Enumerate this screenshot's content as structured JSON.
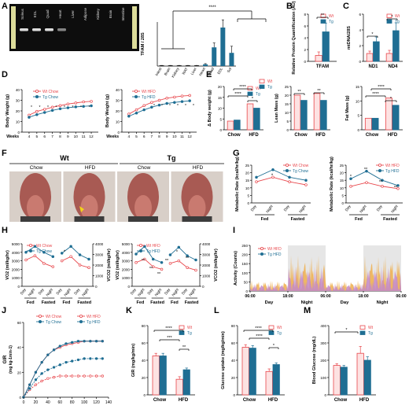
{
  "colors": {
    "wt": "#e8474c",
    "tg": "#1f6e93",
    "gel": "#0d0d0d",
    "band": "#e8e8e8",
    "mouse": "#a85a53",
    "mouse_bg": "#d8cfc8",
    "activity_wt": "#c389c9",
    "activity_tg": "#efae4b"
  },
  "panels": {
    "A": "A",
    "B": "B",
    "C": "C",
    "D": "D",
    "E": "E",
    "F": "F",
    "G": "G",
    "H": "H",
    "I": "I",
    "J": "J",
    "K": "K",
    "L": "L",
    "M": "M"
  },
  "chart_data": [
    {
      "id": "A-gel",
      "type": "other",
      "lanes": [
        "Soleus",
        "EDL",
        "Quad",
        "Heart",
        "Liver",
        "Adipose",
        "Kidney",
        "Brain",
        "Intestine"
      ],
      "bands_visible_in": [
        "Soleus",
        "EDL",
        "Quad",
        "Heart"
      ]
    },
    {
      "id": "A",
      "type": "bar",
      "ylabel": "TFAM / 28S",
      "categories": [
        "Intest",
        "Brain",
        "Kidney",
        "WAT",
        "Liver",
        "Heart",
        "Quad",
        "EDL",
        "Sol"
      ],
      "values": [
        0.02,
        0.02,
        0.02,
        0.02,
        0.02,
        0.08,
        0.85,
        1.75,
        0.6
      ],
      "errors": [
        0.01,
        0.01,
        0.01,
        0.01,
        0.01,
        0.03,
        0.2,
        0.35,
        0.3
      ],
      "sig": "****"
    },
    {
      "id": "B",
      "type": "bar",
      "ylabel": "Relative Protein Quantification (AU)",
      "categories": [
        "TFAM"
      ],
      "series": [
        {
          "name": "Wt",
          "values": [
            1.0
          ],
          "errors": [
            0.6
          ]
        },
        {
          "name": "Tg",
          "values": [
            5.0
          ],
          "errors": [
            1.5
          ]
        }
      ],
      "ylim": [
        0,
        8
      ],
      "yticks": [
        0,
        2,
        4,
        6,
        8
      ],
      "sig": "**",
      "legend": "top-right"
    },
    {
      "id": "C",
      "type": "bar",
      "ylabel": "mtDNA/28S",
      "categories": [
        "ND1",
        "ND4"
      ],
      "series": [
        {
          "name": "Wt",
          "values": [
            1.0,
            1.0
          ],
          "errors": [
            0.3,
            0.4
          ]
        },
        {
          "name": "Tg",
          "values": [
            2.5,
            3.9
          ],
          "errors": [
            0.6,
            1.0
          ]
        }
      ],
      "ylim": [
        0,
        6
      ],
      "yticks": [
        0,
        2,
        4,
        6
      ],
      "sig": [
        "*",
        "*"
      ],
      "legend": "top-right"
    },
    {
      "id": "D1",
      "type": "line",
      "ylabel": "Body Weight (g)",
      "xlabel": "Weeks",
      "x": [
        4,
        5,
        6,
        7,
        8,
        9,
        10,
        11,
        12
      ],
      "series": [
        {
          "name": "Wt Chow",
          "values": [
            16,
            19.5,
            21.5,
            23.5,
            25,
            26.5,
            27.5,
            28.5,
            29
          ]
        },
        {
          "name": "Tg Chow",
          "values": [
            14,
            16.5,
            18.5,
            20.5,
            22,
            23,
            23.8,
            24.3,
            24.8
          ]
        }
      ],
      "ylim": [
        0,
        40
      ],
      "yticks": [
        0,
        10,
        20,
        30,
        40
      ],
      "sig": "*",
      "legend": "top-left"
    },
    {
      "id": "D2",
      "type": "line",
      "ylabel": "Body Weight (g)",
      "xlabel": "Weeks",
      "x": [
        4,
        5,
        6,
        7,
        8,
        9,
        10,
        11,
        12
      ],
      "series": [
        {
          "name": "Wt HFD",
          "values": [
            17,
            21,
            25,
            28,
            30,
            32,
            33,
            34,
            34.5
          ]
        },
        {
          "name": "Tg HFD",
          "values": [
            15,
            18,
            21,
            23.5,
            25.5,
            27,
            28,
            28.8,
            29.5
          ]
        }
      ],
      "ylim": [
        0,
        40
      ],
      "yticks": [
        0,
        10,
        20,
        30,
        40
      ],
      "sig": "*",
      "legend": "top-left"
    },
    {
      "id": "E1",
      "type": "bar",
      "ylabel": "Δ Body weight (g)",
      "categories": [
        "Chow",
        "HFD"
      ],
      "series": [
        {
          "name": "Wt",
          "values": [
            4,
            12
          ]
        },
        {
          "name": "Tg",
          "values": [
            4.5,
            10
          ]
        }
      ],
      "ylim": [
        0,
        20
      ],
      "yticks": [
        0,
        5,
        10,
        15,
        20
      ],
      "sig": [
        "****",
        "****",
        "*"
      ],
      "legend": "top-right"
    },
    {
      "id": "E2",
      "type": "bar",
      "ylabel": "Lean Mass (g)",
      "categories": [
        "Chow",
        "HFD"
      ],
      "series": [
        {
          "name": "Wt",
          "values": [
            20,
            21
          ]
        },
        {
          "name": "Tg",
          "values": [
            17,
            17
          ]
        }
      ],
      "ylim": [
        0,
        25
      ],
      "yticks": [
        0,
        5,
        10,
        15,
        20,
        25
      ],
      "sig": [
        "**",
        "**"
      ]
    },
    {
      "id": "E3",
      "type": "bar",
      "ylabel": "Fat Mass (g)",
      "categories": [
        "Chow",
        "HFD"
      ],
      "series": [
        {
          "name": "Wt",
          "values": [
            4,
            11
          ]
        },
        {
          "name": "Tg",
          "values": [
            4,
            8.5
          ]
        }
      ],
      "ylim": [
        0,
        15
      ],
      "yticks": [
        0,
        5,
        10,
        15
      ],
      "sig": [
        "****",
        "****",
        "*"
      ]
    },
    {
      "id": "F",
      "type": "other",
      "groups": [
        "Wt",
        "Tg"
      ],
      "diets": [
        "Chow",
        "HFD",
        "Chow",
        "HFD"
      ]
    },
    {
      "id": "G1",
      "type": "line",
      "ylabel": "Metabolic Rate (kcal/hr/kg)",
      "categories": [
        "Day",
        "Night",
        "Day",
        "Night"
      ],
      "groups": [
        "Fed",
        "Fasted"
      ],
      "series": [
        {
          "name": "Wt Chow",
          "values": [
            14,
            17,
            14,
            12
          ]
        },
        {
          "name": "Tg Chow",
          "values": [
            17,
            22,
            17,
            15
          ]
        }
      ],
      "ylim": [
        0,
        25
      ],
      "yticks": [
        0,
        5,
        10,
        15,
        20,
        25
      ],
      "sig": "*",
      "legend": "top-right"
    },
    {
      "id": "G2",
      "type": "line",
      "ylabel": "Metabolic Rate (kcal/hr/kg)",
      "categories": [
        "Day",
        "Night",
        "Day",
        "Night"
      ],
      "groups": [
        "Fed",
        "Fasted"
      ],
      "series": [
        {
          "name": "Wt HFD",
          "values": [
            11,
            13.5,
            11,
            9.5
          ]
        },
        {
          "name": "Tg HFD",
          "values": [
            16,
            21,
            15,
            11.5
          ]
        }
      ],
      "ylim": [
        0,
        25
      ],
      "yticks": [
        0,
        5,
        10,
        15,
        20,
        25
      ],
      "sig": [
        "*",
        "**",
        "**",
        "**"
      ],
      "legend": "top-right"
    },
    {
      "id": "H1",
      "type": "line",
      "ylabel": "VO2 (ml/kg/hr)",
      "ylabel2": "VCO2 (ml/kg/hr)",
      "categories": [
        "Day",
        "Night",
        "Day",
        "Night",
        "Day",
        "Night",
        "Day",
        "Night"
      ],
      "groups": [
        "Fed",
        "Fasted",
        "Fed",
        "Fasted"
      ],
      "series": [
        {
          "name": "Wt Chow",
          "values": [
            3100,
            3600,
            2700,
            2300,
            3000,
            3500,
            2500,
            2200
          ]
        },
        {
          "name": "Tg Chow",
          "values": [
            4000,
            4700,
            4000,
            3500,
            3900,
            4700,
            3700,
            3200
          ]
        }
      ],
      "ylim": [
        0,
        5000
      ],
      "yticks": [
        0,
        1000,
        2000,
        3000,
        4000,
        5000
      ],
      "ylim2": [
        0,
        4000
      ],
      "yticks2": [
        0,
        1000,
        2000,
        3000,
        4000
      ],
      "sig": "*",
      "legend": "top-left"
    },
    {
      "id": "H2",
      "type": "line",
      "ylabel": "VO2 (ml/kg/hr)",
      "ylabel2": "VCO2 (ml/kg/hr)",
      "categories": [
        "Day",
        "Night",
        "Day",
        "Night",
        "Day",
        "Night",
        "Day",
        "Night"
      ],
      "groups": [
        "Fed",
        "Fasted",
        "Fed",
        "Fasted"
      ],
      "series": [
        {
          "name": "Wt HFD",
          "values": [
            2800,
            3200,
            2300,
            2000,
            2700,
            3000,
            2200,
            1900
          ]
        },
        {
          "name": "Tg HFD",
          "values": [
            3800,
            4700,
            3200,
            2800,
            3700,
            4600,
            3600,
            3100
          ]
        }
      ],
      "ylim": [
        0,
        5000
      ],
      "yticks": [
        0,
        1000,
        2000,
        3000,
        4000,
        5000
      ],
      "ylim2": [
        0,
        4000
      ],
      "yticks2": [
        0,
        1000,
        2000,
        3000,
        4000
      ],
      "sig": [
        "**",
        "**",
        "**",
        "**",
        "*",
        "**"
      ],
      "legend": "top-left"
    },
    {
      "id": "I",
      "type": "area",
      "ylabel": "Activity (Counts)",
      "xticks": [
        "06:00",
        "18:00",
        "06:00",
        "18:00",
        "06:00"
      ],
      "periods": [
        "Day",
        "Night",
        "Day",
        "Night"
      ],
      "series": [
        {
          "name": "Wt HFD"
        },
        {
          "name": "Tg HFD"
        }
      ],
      "ylim": [
        0,
        250
      ],
      "yticks": [
        0,
        50,
        100,
        150,
        200,
        250
      ],
      "legend": "top-left"
    },
    {
      "id": "J",
      "type": "line",
      "ylabel": "GIR",
      "ylabel2": "(mg kg-1min-1)",
      "x": [
        0,
        10,
        20,
        30,
        40,
        50,
        60,
        70,
        80,
        90,
        100,
        110,
        120,
        130
      ],
      "series": [
        {
          "name": "Wt Chow",
          "values": [
            0,
            10,
            20,
            28,
            34,
            38,
            40,
            42,
            43,
            44,
            45,
            45,
            45,
            45
          ]
        },
        {
          "name": "Tg Chow",
          "values": [
            0,
            10,
            20,
            28,
            34,
            38,
            41,
            43,
            44,
            45,
            45,
            45,
            45,
            45
          ]
        },
        {
          "name": "Wt HFD",
          "values": [
            0,
            6,
            10,
            13,
            15,
            16,
            17,
            17,
            17,
            17,
            17,
            17,
            17,
            17
          ]
        },
        {
          "name": "Tg HFD",
          "values": [
            0,
            7,
            14,
            19,
            22,
            24,
            26,
            28,
            29,
            30,
            31,
            31,
            31,
            31
          ]
        }
      ],
      "xlim": [
        0,
        140
      ],
      "xticks": [
        0,
        20,
        40,
        60,
        80,
        100,
        120,
        140
      ],
      "ylim": [
        0,
        60
      ],
      "yticks": [
        0,
        20,
        40,
        60
      ],
      "legend": "top-left"
    },
    {
      "id": "K",
      "type": "bar",
      "ylabel": "GIR (mg/kg/min)",
      "categories": [
        "Chow",
        "HFD"
      ],
      "series": [
        {
          "name": "Wt",
          "values": [
            45,
            18
          ],
          "errors": [
            3,
            3
          ]
        },
        {
          "name": "Tg",
          "values": [
            45,
            29
          ],
          "errors": [
            3,
            2
          ]
        }
      ],
      "ylim": [
        0,
        80
      ],
      "yticks": [
        0,
        20,
        40,
        60,
        80
      ],
      "sig": [
        "****",
        "***",
        "**"
      ],
      "legend": "top-right"
    },
    {
      "id": "L",
      "type": "bar",
      "ylabel": "Glucose uptake (mg/kg/min)",
      "categories": [
        "Chow",
        "HFD"
      ],
      "series": [
        {
          "name": "Wt",
          "values": [
            55,
            27
          ],
          "errors": [
            3,
            3
          ]
        },
        {
          "name": "Tg",
          "values": [
            54,
            35
          ],
          "errors": [
            3,
            2
          ]
        }
      ],
      "ylim": [
        0,
        80
      ],
      "yticks": [
        0,
        20,
        40,
        60,
        80
      ],
      "sig": [
        "****",
        "****",
        "*"
      ],
      "legend": "top-right"
    },
    {
      "id": "M",
      "type": "bar",
      "ylabel": "Blood Glucose (mg/dL)",
      "categories": [
        "Chow",
        "HFD"
      ],
      "series": [
        {
          "name": "Wt",
          "values": [
            170,
            240
          ],
          "errors": [
            10,
            40
          ]
        },
        {
          "name": "Tg",
          "values": [
            160,
            200
          ],
          "errors": [
            10,
            20
          ]
        }
      ],
      "ylim": [
        0,
        400
      ],
      "yticks": [
        0,
        100,
        200,
        300,
        400
      ],
      "sig": "*",
      "legend": "top-right"
    }
  ],
  "text": {
    "A_gel_lanes": [
      "Soleus",
      "EDL",
      "Quad",
      "Heart",
      "Liver",
      "Adipose",
      "Kidney",
      "Brain",
      "Intestine"
    ],
    "F_groups": [
      "Wt",
      "Tg"
    ],
    "F_diets": [
      "Chow",
      "HFD",
      "Chow",
      "HFD"
    ]
  }
}
